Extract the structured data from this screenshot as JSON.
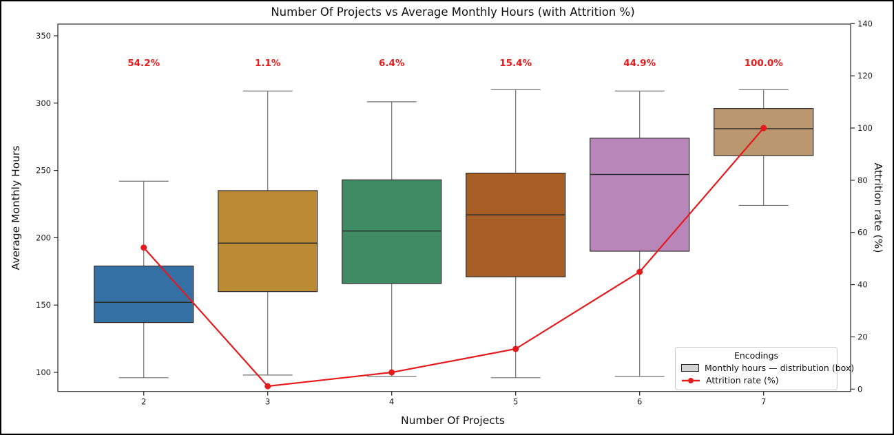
{
  "figure": {
    "title": "Number Of Projects vs Average Monthly Hours (with Attrition %)",
    "background_color": "#ffffff",
    "border_color": "#000000"
  },
  "legend": {
    "title": "Encodings",
    "items": [
      {
        "swatch": "gray-box-patch",
        "label": "Monthly hours — distribution (box)"
      },
      {
        "swatch": "red-line-with-marker",
        "label": "Attrition rate (%)"
      }
    ]
  },
  "chart_data": {
    "type": "box+line",
    "title": "Number Of Projects vs Average Monthly Hours (with Attrition %)",
    "xlabel": "Number Of Projects",
    "ylabel_left": "Average Monthly Hours",
    "ylabel_right": "Attrition rate (%)",
    "x_ticks": [
      2,
      3,
      4,
      5,
      6,
      7
    ],
    "y_left_ticks": [
      100,
      150,
      200,
      250,
      300,
      350
    ],
    "y_left_range": [
      86,
      359
    ],
    "y_right_ticks": [
      0,
      20,
      40,
      60,
      80,
      100,
      120,
      140
    ],
    "y_right_range": [
      -1,
      140
    ],
    "grid": false,
    "legend_position": "lower right",
    "box_series": {
      "name": "Monthly hours — distribution (box)",
      "x": [
        2,
        3,
        4,
        5,
        6,
        7
      ],
      "stats": [
        {
          "x": 2,
          "whisker_low": 96,
          "q1": 137,
          "median": 152,
          "q3": 179,
          "whisker_high": 242,
          "color": "#3470a4"
        },
        {
          "x": 3,
          "whisker_low": 98,
          "q1": 160,
          "median": 196,
          "q3": 235,
          "whisker_high": 309,
          "color": "#bb8a35"
        },
        {
          "x": 4,
          "whisker_low": 97,
          "q1": 166,
          "median": 205,
          "q3": 243,
          "whisker_high": 301,
          "color": "#3e8b64"
        },
        {
          "x": 5,
          "whisker_low": 96,
          "q1": 171,
          "median": 217,
          "q3": 248,
          "whisker_high": 310,
          "color": "#a95e26"
        },
        {
          "x": 6,
          "whisker_low": 97,
          "q1": 190,
          "median": 247,
          "q3": 274,
          "whisker_high": 309,
          "color": "#b886b8"
        },
        {
          "x": 7,
          "whisker_low": 224,
          "q1": 261,
          "median": 281,
          "q3": 296,
          "whisker_high": 310,
          "color": "#ba976f"
        }
      ],
      "edge_color": "#2e2e2e",
      "whisker_color": "#707070"
    },
    "line_series": {
      "name": "Attrition rate (%)",
      "x": [
        2,
        3,
        4,
        5,
        6,
        7
      ],
      "values": [
        54.2,
        1.1,
        6.4,
        15.4,
        44.9,
        100.0
      ],
      "point_labels": [
        "54.2%",
        "1.1%",
        "6.4%",
        "15.4%",
        "44.9%",
        "100.0%"
      ],
      "color": "#e41a1c",
      "axis": "right"
    }
  }
}
